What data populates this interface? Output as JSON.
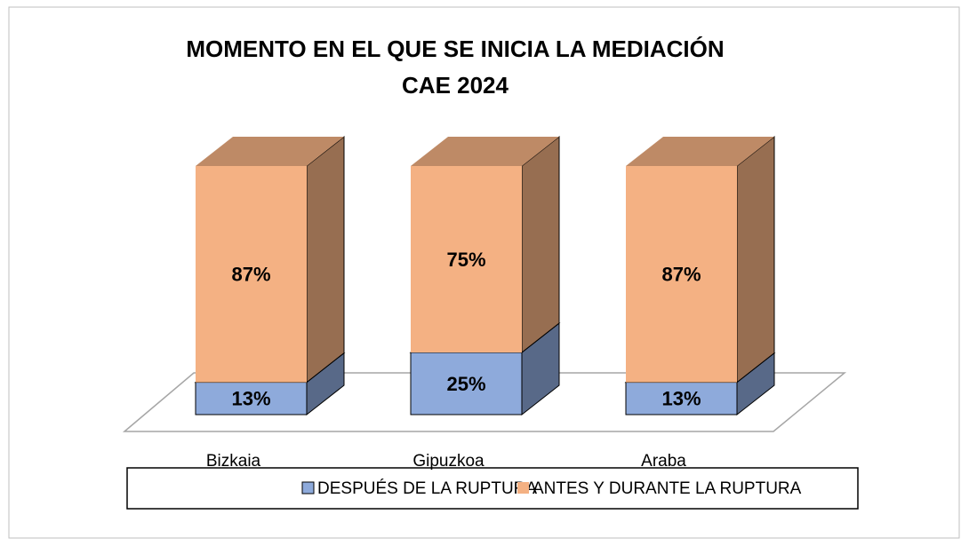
{
  "chart_data": {
    "type": "bar",
    "stacked": true,
    "three_d": true,
    "title": "MOMENTO EN EL QUE SE INICIA LA MEDIACIÓN",
    "subtitle": "CAE 2024",
    "categories": [
      "Bizkaia",
      "Gipuzkoa",
      "Araba"
    ],
    "ylim": [
      0,
      100
    ],
    "series": [
      {
        "name": "DESPUÉS DE LA RUPTURA",
        "color": "#8eaadb",
        "values": [
          13,
          25,
          13
        ],
        "value_labels": [
          "13%",
          "25%",
          "13%"
        ]
      },
      {
        "name": "ANTES Y DURANTE LA RUPTURA",
        "color": "#f4b183",
        "values": [
          87,
          75,
          87
        ],
        "value_labels": [
          "87%",
          "75%",
          "87%"
        ]
      }
    ]
  }
}
